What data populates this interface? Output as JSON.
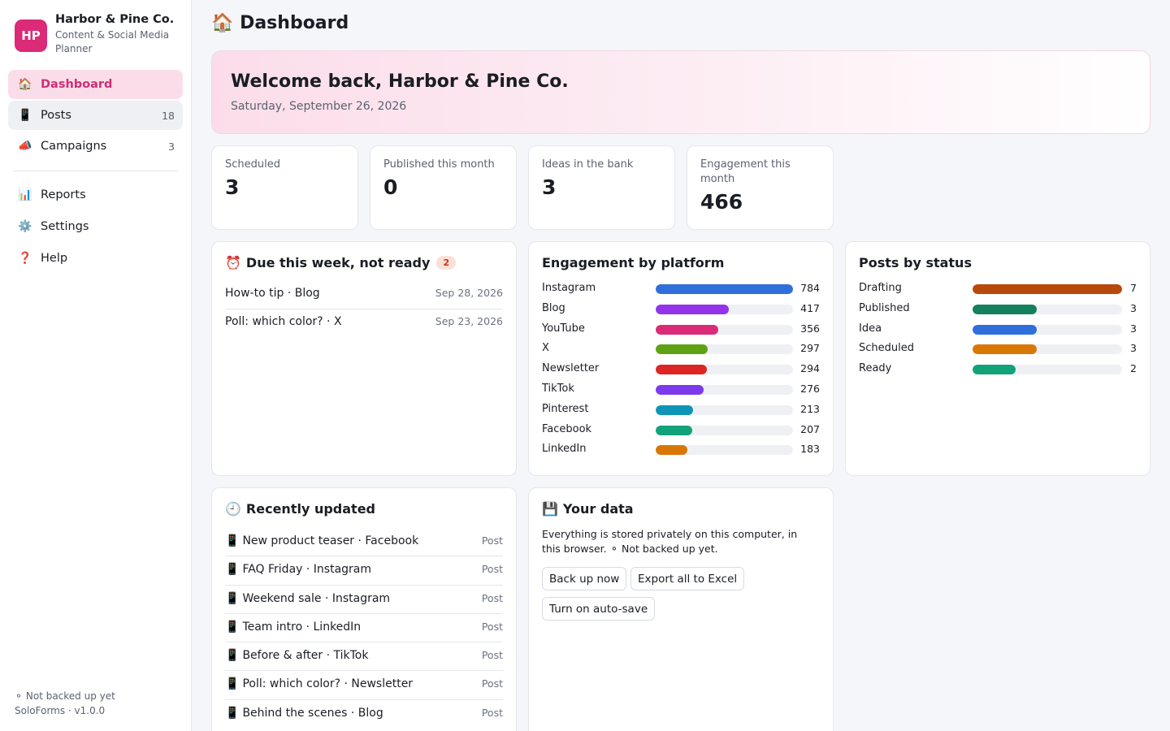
{
  "brand": {
    "initials": "HP",
    "name": "Harbor & Pine Co.",
    "subtitle": "Content & Social Media Planner",
    "logo_color": "#db2a77"
  },
  "nav": {
    "primary": [
      {
        "icon": "🏠",
        "icon_name": "home-icon",
        "label": "Dashboard",
        "count": "",
        "active": true
      },
      {
        "icon": "📱",
        "icon_name": "phone-icon",
        "label": "Posts",
        "count": "18"
      },
      {
        "icon": "📣",
        "icon_name": "megaphone-icon",
        "label": "Campaigns",
        "count": "3"
      }
    ],
    "secondary": [
      {
        "icon": "📊",
        "icon_name": "chart-icon",
        "label": "Reports"
      },
      {
        "icon": "⚙️",
        "icon_name": "gear-icon",
        "label": "Settings"
      },
      {
        "icon": "❓",
        "icon_name": "question-icon",
        "label": "Help"
      }
    ]
  },
  "footer": {
    "backup_status": "⚬ Not backed up yet",
    "version": "SoloForms · v1.0.0"
  },
  "page": {
    "icon": "🏠",
    "title": "Dashboard"
  },
  "hero": {
    "title": "Welcome back, Harbor & Pine Co.",
    "date": "Saturday, September 26, 2026"
  },
  "stats": [
    {
      "label": "Scheduled",
      "value": "3"
    },
    {
      "label": "Published this month",
      "value": "0"
    },
    {
      "label": "Ideas in the bank",
      "value": "3"
    },
    {
      "label": "Engagement this month",
      "value": "466"
    }
  ],
  "due": {
    "icon": "⏰",
    "title": "Due this week, not ready",
    "count": "2",
    "items": [
      {
        "title": "How-to tip · Blog",
        "date": "Sep 28, 2026"
      },
      {
        "title": "Poll: which color? · X",
        "date": "Sep 23, 2026"
      }
    ]
  },
  "engagement": {
    "title": "Engagement by platform",
    "max": 784,
    "items": [
      {
        "label": "Instagram",
        "value": 784,
        "color": "#2f6fdc"
      },
      {
        "label": "Blog",
        "value": 417,
        "color": "#9333ea"
      },
      {
        "label": "YouTube",
        "value": 356,
        "color": "#db2a77"
      },
      {
        "label": "X",
        "value": 297,
        "color": "#5ea214"
      },
      {
        "label": "Newsletter",
        "value": 294,
        "color": "#dc2626"
      },
      {
        "label": "TikTok",
        "value": 276,
        "color": "#7c3aed"
      },
      {
        "label": "Pinterest",
        "value": 213,
        "color": "#0e95b5"
      },
      {
        "label": "Facebook",
        "value": 207,
        "color": "#12a27a"
      },
      {
        "label": "LinkedIn",
        "value": 183,
        "color": "#d97706"
      }
    ]
  },
  "status": {
    "title": "Posts by status",
    "max": 7,
    "items": [
      {
        "label": "Drafting",
        "value": 7,
        "color": "#b8490a"
      },
      {
        "label": "Published",
        "value": 3,
        "color": "#15805e"
      },
      {
        "label": "Idea",
        "value": 3,
        "color": "#2f6fdc"
      },
      {
        "label": "Scheduled",
        "value": 3,
        "color": "#d97706"
      },
      {
        "label": "Ready",
        "value": 2,
        "color": "#12a27a"
      }
    ]
  },
  "recent": {
    "icon": "🕘",
    "title": "Recently updated",
    "items": [
      {
        "icon": "📱",
        "title": "New product teaser · Facebook",
        "type": "Post"
      },
      {
        "icon": "📱",
        "title": "FAQ Friday · Instagram",
        "type": "Post"
      },
      {
        "icon": "📱",
        "title": "Weekend sale · Instagram",
        "type": "Post"
      },
      {
        "icon": "📱",
        "title": "Team intro · LinkedIn",
        "type": "Post"
      },
      {
        "icon": "📱",
        "title": "Before & after · TikTok",
        "type": "Post"
      },
      {
        "icon": "📱",
        "title": "Poll: which color? · Newsletter",
        "type": "Post"
      },
      {
        "icon": "📱",
        "title": "Behind the scenes · Blog",
        "type": "Post"
      }
    ]
  },
  "your_data": {
    "icon": "💾",
    "title": "Your data",
    "text": "Everything is stored privately on this computer, in this browser. ⚬ Not backed up yet.",
    "buttons": {
      "backup": "Back up now",
      "export": "Export all to Excel",
      "autosave": "Turn on auto-save"
    }
  }
}
